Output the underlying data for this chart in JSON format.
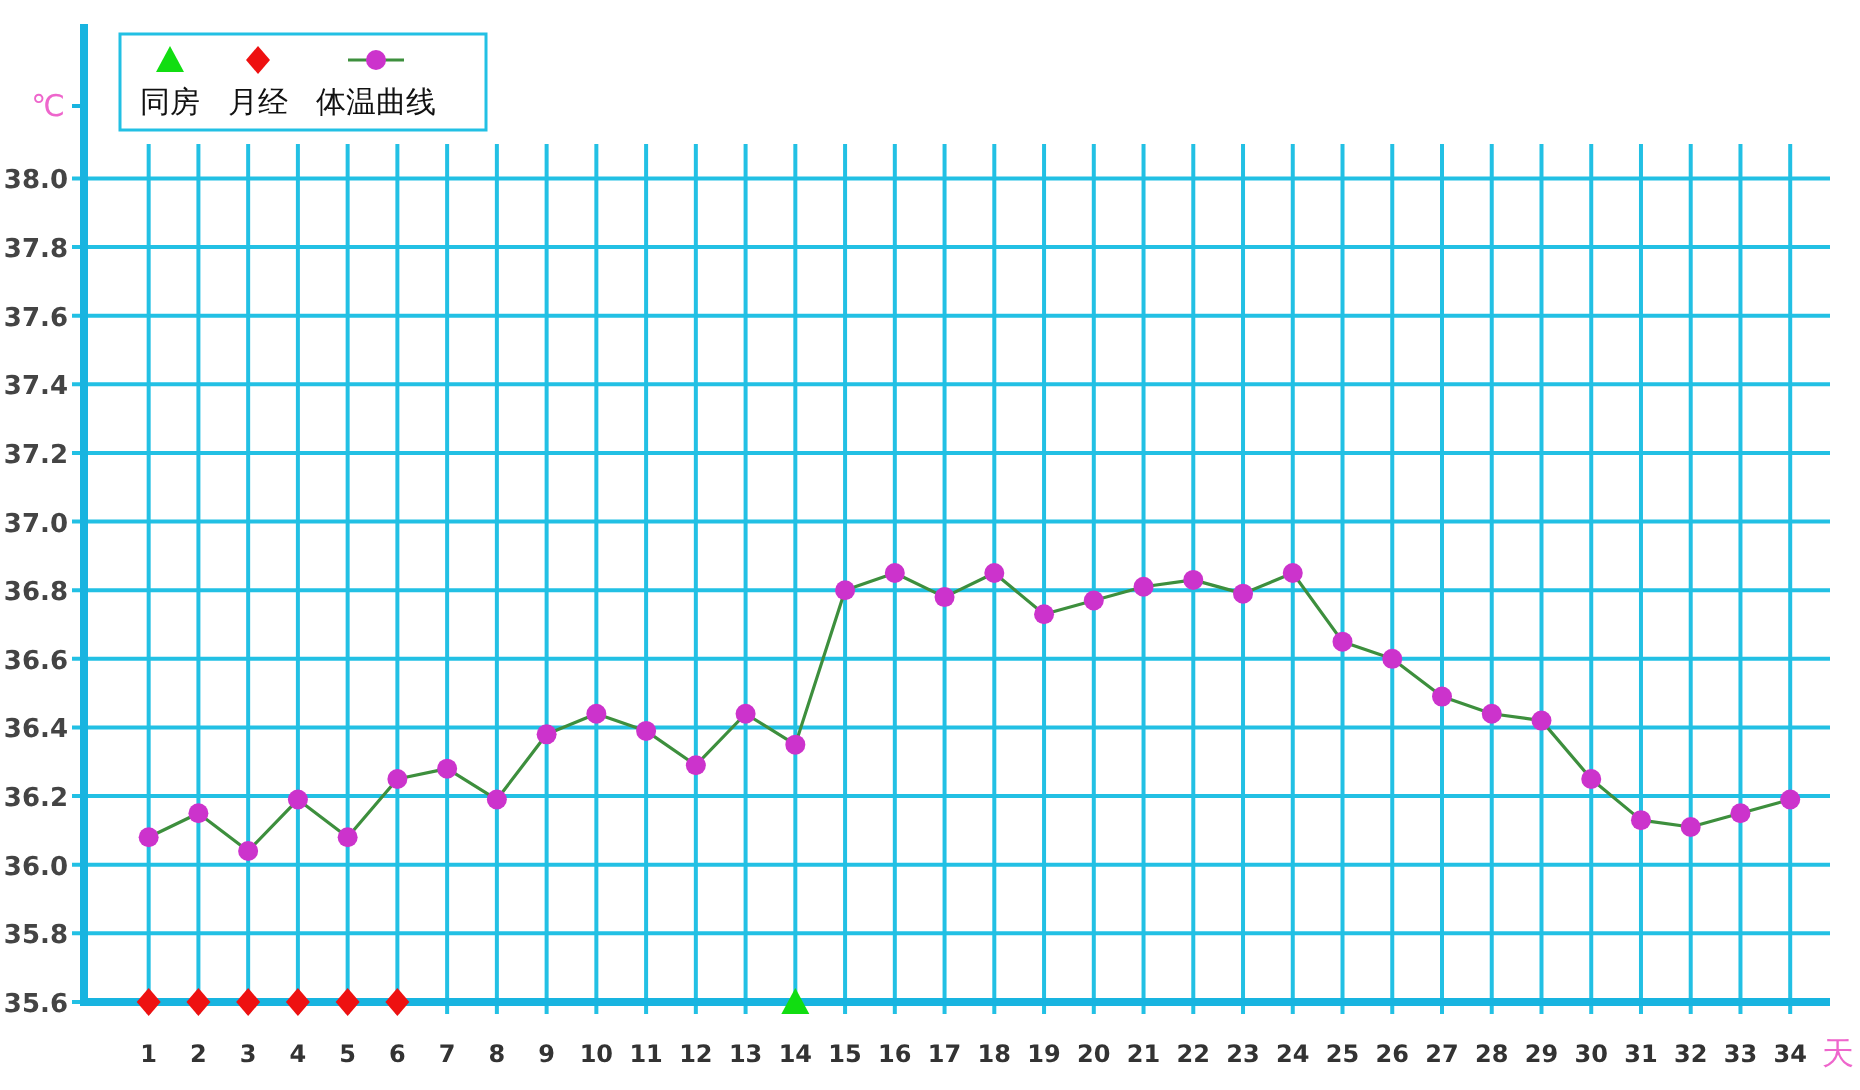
{
  "chart_data": {
    "type": "line",
    "ylabel": "℃",
    "xlabel": "天",
    "x": [
      1,
      2,
      3,
      4,
      5,
      6,
      7,
      8,
      9,
      10,
      11,
      12,
      13,
      14,
      15,
      16,
      17,
      18,
      19,
      20,
      21,
      22,
      23,
      24,
      25,
      26,
      27,
      28,
      29,
      30,
      31,
      32,
      33,
      34
    ],
    "series": [
      {
        "name": "同房",
        "type": "scatter",
        "marker": "triangle",
        "color": "#11dd11",
        "x": [
          14
        ],
        "values": [
          35.6
        ]
      },
      {
        "name": "月经",
        "type": "scatter",
        "marker": "diamond",
        "color": "#ee1111",
        "x": [
          1,
          2,
          3,
          4,
          5,
          6
        ],
        "values": [
          35.6,
          35.6,
          35.6,
          35.6,
          35.6,
          35.6
        ]
      },
      {
        "name": "体温曲线",
        "marker": "circle",
        "color": "#3d8f3d",
        "colors": [
          "#cc33cc",
          "#cc33cc",
          "#cc33cc",
          "#cc33cc",
          "#cc33cc",
          "#cc33cc",
          "#cc33cc",
          "#cc33cc",
          "#cc33cc",
          "#cc33cc",
          "#cc33cc",
          "#cc33cc",
          "#cc33cc",
          "#cc33cc",
          "#cc33cc",
          "#cc33cc",
          "#cc33cc",
          "#cc33cc",
          "#cc33cc",
          "#cc33cc",
          "#cc33cc",
          "#cc33cc",
          "#cc33cc",
          "#cc33cc",
          "#cc33cc",
          "#cc33cc",
          "#cc33cc",
          "#cc33cc",
          "#cc33cc",
          "#cc33cc",
          "#cc33cc",
          "#cc33cc",
          "#cc33cc",
          "#cc33cc"
        ],
        "values": [
          36.08,
          36.15,
          36.04,
          36.19,
          36.08,
          36.25,
          36.28,
          36.19,
          36.38,
          36.44,
          36.39,
          36.29,
          36.44,
          36.35,
          36.8,
          36.85,
          36.78,
          36.85,
          36.73,
          36.77,
          36.81,
          36.83,
          36.79,
          36.85,
          36.65,
          36.6,
          36.49,
          36.44,
          36.42,
          36.25,
          36.13,
          36.11,
          36.15,
          36.19
        ]
      }
    ],
    "xlim": [
      -0.3,
      34.8
    ],
    "xticks": [
      1,
      2,
      3,
      4,
      5,
      6,
      7,
      8,
      9,
      10,
      11,
      12,
      13,
      14,
      15,
      16,
      17,
      18,
      19,
      20,
      21,
      22,
      23,
      24,
      25,
      26,
      27,
      28,
      29,
      30,
      31,
      32,
      33,
      34
    ],
    "ylim": [
      35.6,
      38.45
    ],
    "yticks": [
      {
        "value": 35.6,
        "label": "35.6"
      },
      {
        "value": 35.8,
        "label": "35.8"
      },
      {
        "value": 36.0,
        "label": "36.0"
      },
      {
        "value": 36.2,
        "label": "36.2"
      },
      {
        "value": 36.4,
        "label": "36.4"
      },
      {
        "value": 36.6,
        "label": "36.6"
      },
      {
        "value": 36.8,
        "label": "36.8"
      },
      {
        "value": 37.0,
        "label": "37.0"
      },
      {
        "value": 37.2,
        "label": "37.2"
      },
      {
        "value": 37.4,
        "label": "37.4"
      },
      {
        "value": 37.6,
        "label": "37.6"
      },
      {
        "value": 37.8,
        "label": "37.8"
      },
      {
        "value": 38.0,
        "label": "38.0"
      }
    ],
    "grid": true,
    "legend": "top left"
  }
}
